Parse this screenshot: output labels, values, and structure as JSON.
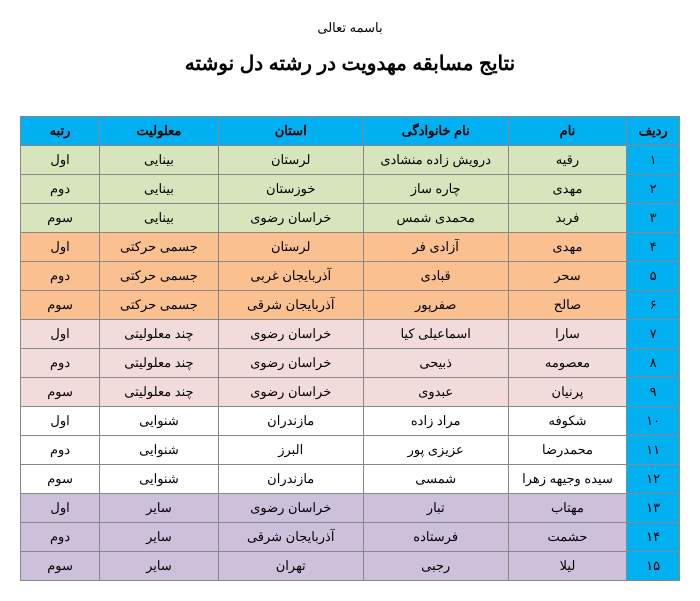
{
  "header_top": "باسمه تعالی",
  "header_title": "نتایج مسابقه مهدویت در رشته دل نوشته",
  "columns": {
    "rank": "ردیف",
    "name": "نام",
    "family": "نام خانوادگی",
    "province": "استان",
    "disability": "معلولیت",
    "place": "رتبه"
  },
  "header_bg": "#00b0f0",
  "rank_col_bg": "#00b0f0",
  "rows": [
    {
      "n": "۱",
      "name": "رقیه",
      "family": "درویش زاده منشادی",
      "province": "لرستان",
      "disability": "بینایی",
      "place": "اول",
      "bg": "#d8e4bc"
    },
    {
      "n": "۲",
      "name": "مهدی",
      "family": "چاره ساز",
      "province": "خوزستان",
      "disability": "بینایی",
      "place": "دوم",
      "bg": "#d8e4bc"
    },
    {
      "n": "۳",
      "name": "فربد",
      "family": "محمدی شمس",
      "province": "خراسان رضوی",
      "disability": "بینایی",
      "place": "سوم",
      "bg": "#d8e4bc"
    },
    {
      "n": "۴",
      "name": "مهدی",
      "family": "آزادی فر",
      "province": "لرستان",
      "disability": "جسمی حرکتی",
      "place": "اول",
      "bg": "#fac08f"
    },
    {
      "n": "۵",
      "name": "سحر",
      "family": "قبادی",
      "province": "آذربایجان غربی",
      "disability": "جسمی حرکتی",
      "place": "دوم",
      "bg": "#fac08f"
    },
    {
      "n": "۶",
      "name": "صالح",
      "family": "صفرپور",
      "province": "آذربایجان شرقی",
      "disability": "جسمی حرکتی",
      "place": "سوم",
      "bg": "#fac08f"
    },
    {
      "n": "۷",
      "name": "سارا",
      "family": "اسماعیلی کیا",
      "province": "خراسان رضوی",
      "disability": "چند معلولیتی",
      "place": "اول",
      "bg": "#f2dcdb"
    },
    {
      "n": "۸",
      "name": "معصومه",
      "family": "ذبیحی",
      "province": "خراسان رضوی",
      "disability": "چند معلولیتی",
      "place": "دوم",
      "bg": "#f2dcdb"
    },
    {
      "n": "۹",
      "name": "پرنیان",
      "family": "عبدوی",
      "province": "خراسان رضوی",
      "disability": "چند معلولیتی",
      "place": "سوم",
      "bg": "#f2dcdb"
    },
    {
      "n": "۱۰",
      "name": "شکوفه",
      "family": "مراد زاده",
      "province": "مازندران",
      "disability": "شنوایی",
      "place": "اول",
      "bg": "#ffffff"
    },
    {
      "n": "۱۱",
      "name": "محمدرضا",
      "family": "عزیزی پور",
      "province": "البرز",
      "disability": "شنوایی",
      "place": "دوم",
      "bg": "#ffffff"
    },
    {
      "n": "۱۲",
      "name": "سیده وجیهه زهرا",
      "family": "شمسی",
      "province": "مازندران",
      "disability": "شنوایی",
      "place": "سوم",
      "bg": "#ffffff"
    },
    {
      "n": "۱۳",
      "name": "مهتاب",
      "family": "تبار",
      "province": "خراسان رضوی",
      "disability": "سایر",
      "place": "اول",
      "bg": "#ccc0da"
    },
    {
      "n": "۱۴",
      "name": "حشمت",
      "family": "فرستاده",
      "province": "آذربایجان شرقی",
      "disability": "سایر",
      "place": "دوم",
      "bg": "#ccc0da"
    },
    {
      "n": "۱۵",
      "name": "لیلا",
      "family": "رجبی",
      "province": "تهران",
      "disability": "سایر",
      "place": "سوم",
      "bg": "#ccc0da"
    }
  ]
}
